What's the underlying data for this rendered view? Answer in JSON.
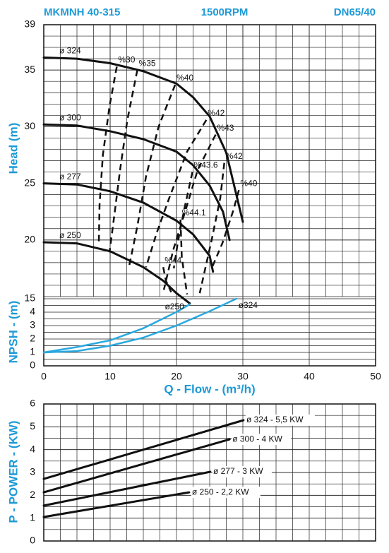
{
  "header": {
    "model": "MKMNH 40-315",
    "speed": "1500RPM",
    "connection": "DN65/40"
  },
  "chart_data": [
    {
      "type": "line",
      "ylabel": "Head (m)",
      "xlim": [
        0,
        50
      ],
      "ylim": [
        15,
        39
      ],
      "yticks": [
        20,
        25,
        30,
        35,
        39
      ],
      "grid": true,
      "minor_grid": {
        "x": 2.5,
        "y": 1
      },
      "color": "#111111",
      "series": [
        {
          "name": "ø 324",
          "x": [
            0,
            5,
            10,
            15,
            20,
            22.5,
            25,
            27.5,
            30
          ],
          "values": [
            36.1,
            36,
            35.6,
            34.9,
            33.8,
            32.6,
            30.9,
            27.7,
            21.6
          ]
        },
        {
          "name": "ø 300",
          "x": [
            0,
            5,
            10,
            15,
            20,
            22.5,
            25,
            27,
            28
          ],
          "values": [
            30.2,
            30.1,
            29.6,
            28.9,
            27.8,
            26.6,
            24.8,
            22.5,
            20
          ]
        },
        {
          "name": "ø 277",
          "x": [
            0,
            5,
            10,
            15,
            20,
            22.5,
            25,
            25.5
          ],
          "values": [
            25,
            24.9,
            24.3,
            23.3,
            21.7,
            20.5,
            18.6,
            17.2
          ]
        },
        {
          "name": "ø 250",
          "x": [
            0,
            5,
            10,
            15,
            18,
            20,
            22
          ],
          "values": [
            19.8,
            19.7,
            19,
            17.6,
            16.4,
            15.3,
            14.4
          ]
        }
      ],
      "efficiency_curves": [
        {
          "name": "%30",
          "x": [
            11.0,
            9.9,
            8.9,
            8.4,
            8.3
          ],
          "values": [
            35.3,
            31.8,
            27.5,
            23.1,
            19.7
          ]
        },
        {
          "name": "%35",
          "x": [
            14.1,
            12.6,
            11.5,
            10.7,
            9.9
          ],
          "values": [
            35.0,
            30.6,
            26.2,
            22.5,
            18.9
          ]
        },
        {
          "name": "%40",
          "x": [
            19.8,
            17.3,
            15.4,
            14.1,
            12.9
          ],
          "values": [
            33.7,
            30.0,
            25.6,
            21.2,
            17.8
          ]
        },
        {
          "name": "%42",
          "x": [
            24.5,
            21.6,
            18.9,
            17.0,
            15.4
          ],
          "values": [
            30.6,
            27.8,
            23.7,
            20.6,
            17.6
          ]
        },
        {
          "name": "%43",
          "x": [
            25.9,
            23.2,
            21.3,
            19.5,
            18.1
          ],
          "values": [
            29.3,
            26.2,
            22.5,
            19.1,
            15.6
          ]
        },
        {
          "name": "%43.6",
          "x": [
            22.4,
            21.2,
            20.2,
            19.6
          ],
          "values": [
            26.0,
            22.8,
            19.8,
            17.5
          ]
        },
        {
          "name": "%44.1",
          "x": [
            20.6,
            20.8,
            21.6
          ],
          "values": [
            21.8,
            18.5,
            15.2
          ]
        },
        {
          "name": "%44",
          "x": [
            18.0,
            18.4,
            19.2
          ],
          "values": [
            17.6,
            16.4,
            15.4
          ]
        },
        {
          "name": "%42",
          "x": [
            27.2,
            26.6,
            25.3,
            23.5
          ],
          "values": [
            26.8,
            23.7,
            20.0,
            15.3
          ]
        },
        {
          "name": "%40",
          "x": [
            29.4,
            28.5,
            26.9,
            25.3
          ],
          "values": [
            24.4,
            22.5,
            19.7,
            17.5
          ]
        }
      ]
    },
    {
      "type": "line",
      "ylabel": "NPSH - (m)",
      "xlabel": "Q - Flow - (m³/h)",
      "xlim": [
        0,
        50
      ],
      "ylim": [
        0,
        15
      ],
      "xticks": [
        0,
        10,
        20,
        30,
        40,
        50
      ],
      "yticks": [
        0,
        1,
        2,
        3,
        4,
        15
      ],
      "grid": true,
      "color": "#29a8e0",
      "series": [
        {
          "name": "ø250",
          "x": [
            0,
            5,
            10,
            15,
            20,
            22
          ],
          "values": [
            1,
            1.4,
            1.9,
            2.8,
            4.2,
            10.5
          ]
        },
        {
          "name": "ø324",
          "x": [
            0,
            5,
            10,
            15,
            20,
            25,
            29
          ],
          "values": [
            1,
            1.1,
            1.5,
            2.1,
            3.0,
            4.8,
            15
          ]
        }
      ]
    },
    {
      "type": "line",
      "ylabel": "P - POWER - (KW)",
      "xlim": [
        0,
        50
      ],
      "ylim": [
        0,
        6
      ],
      "yticks": [
        0,
        1,
        2,
        3,
        4,
        5,
        6
      ],
      "grid": true,
      "minor_grid": {
        "x": 2.5,
        "y": 0.5
      },
      "color": "#111111",
      "series": [
        {
          "name": "ø 324 - 5,5 KW",
          "x": [
            0,
            30.1
          ],
          "values": [
            2.72,
            5.29
          ]
        },
        {
          "name": "ø 300 - 4 KW",
          "x": [
            0,
            28
          ],
          "values": [
            2.13,
            4.45
          ]
        },
        {
          "name": "ø 277 - 3 KW",
          "x": [
            0,
            25.1
          ],
          "values": [
            1.55,
            3.03
          ]
        },
        {
          "name": "ø 250 - 2,2 KW",
          "x": [
            0,
            21.9
          ],
          "values": [
            1.05,
            2.13
          ]
        }
      ]
    }
  ]
}
